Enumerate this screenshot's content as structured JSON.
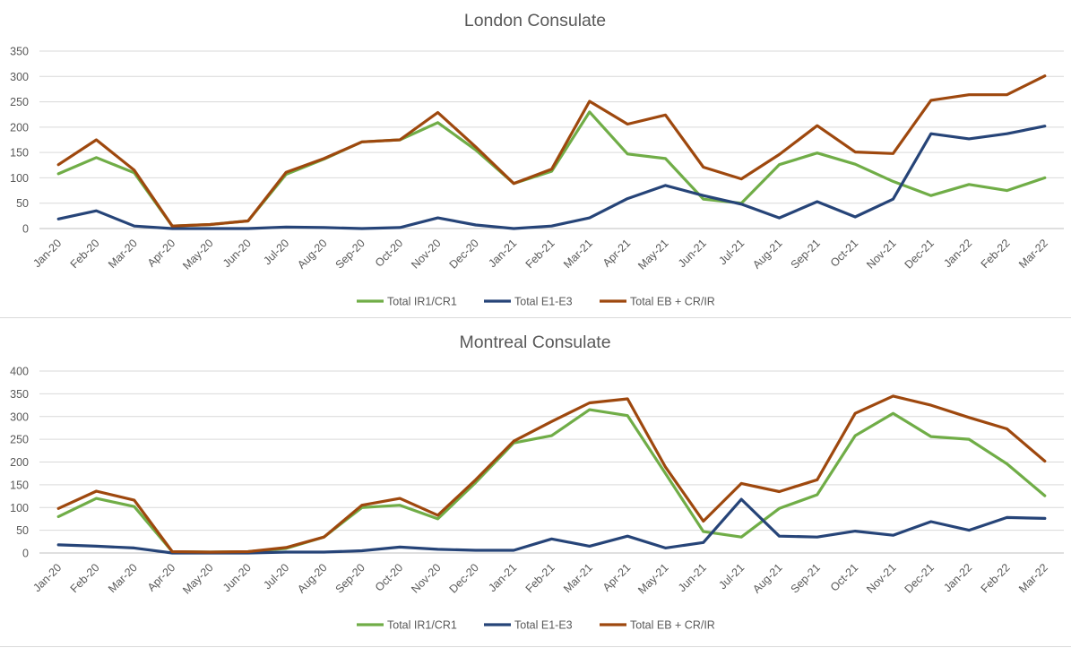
{
  "chart_data": [
    {
      "type": "line",
      "title": "London Consulate",
      "categories": [
        "Jan-20",
        "Feb-20",
        "Mar-20",
        "Apr-20",
        "May-20",
        "Jun-20",
        "Jul-20",
        "Aug-20",
        "Sep-20",
        "Oct-20",
        "Nov-20",
        "Dec-20",
        "Jan-21",
        "Feb-21",
        "Mar-21",
        "Apr-21",
        "May-21",
        "Jun-21",
        "Jul-21",
        "Aug-21",
        "Sep-21",
        "Oct-21",
        "Nov-21",
        "Dec-21",
        "Jan-22",
        "Feb-22",
        "Mar-22"
      ],
      "ylim": [
        0,
        350
      ],
      "yticks": [
        "0",
        "50",
        "100",
        "150",
        "200",
        "250",
        "300",
        "350"
      ],
      "grid": true,
      "legend_position": "bottom",
      "series": [
        {
          "name": "Total IR1/CR1",
          "color": "#70ad47",
          "values": [
            108,
            140,
            110,
            5,
            8,
            15,
            107,
            137,
            171,
            175,
            209,
            155,
            89,
            113,
            230,
            147,
            138,
            58,
            50,
            126,
            149,
            127,
            93,
            65,
            87,
            75,
            100
          ]
        },
        {
          "name": "Total E1-E3",
          "color": "#264478",
          "values": [
            19,
            35,
            5,
            0,
            0,
            0,
            3,
            2,
            0,
            2,
            21,
            7,
            0,
            5,
            21,
            59,
            85,
            65,
            48,
            21,
            53,
            23,
            58,
            187,
            177,
            187,
            202
          ]
        },
        {
          "name": "Total EB + CR/IR",
          "color": "#9e480e",
          "values": [
            126,
            175,
            115,
            5,
            8,
            15,
            111,
            138,
            171,
            175,
            229,
            161,
            89,
            117,
            251,
            206,
            224,
            121,
            98,
            146,
            203,
            151,
            148,
            253,
            264,
            264,
            301
          ]
        }
      ]
    },
    {
      "type": "line",
      "title": "Montreal Consulate",
      "categories": [
        "Jan-20",
        "Feb-20",
        "Mar-20",
        "Apr-20",
        "May-20",
        "Jun-20",
        "Jul-20",
        "Aug-20",
        "Sep-20",
        "Oct-20",
        "Nov-20",
        "Dec-20",
        "Jan-21",
        "Feb-21",
        "Mar-21",
        "Apr-21",
        "May-21",
        "Jun-21",
        "Jul-21",
        "Aug-21",
        "Sep-21",
        "Oct-21",
        "Nov-21",
        "Dec-21",
        "Jan-22",
        "Feb-22",
        "Mar-22"
      ],
      "ylim": [
        0,
        400
      ],
      "yticks": [
        "0",
        "50",
        "100",
        "150",
        "200",
        "250",
        "300",
        "350",
        "400"
      ],
      "grid": true,
      "legend_position": "bottom",
      "series": [
        {
          "name": "Total IR1/CR1",
          "color": "#70ad47",
          "values": [
            80,
            120,
            102,
            3,
            2,
            3,
            10,
            35,
            100,
            105,
            75,
            155,
            242,
            258,
            315,
            302,
            175,
            47,
            35,
            98,
            128,
            258,
            307,
            256,
            250,
            196,
            126
          ]
        },
        {
          "name": "Total E1-E3",
          "color": "#264478",
          "values": [
            18,
            15,
            11,
            0,
            0,
            0,
            2,
            2,
            5,
            13,
            8,
            6,
            6,
            31,
            15,
            37,
            11,
            23,
            118,
            37,
            35,
            48,
            39,
            69,
            50,
            78,
            76
          ]
        },
        {
          "name": "Total EB + CR/IR",
          "color": "#9e480e",
          "values": [
            98,
            136,
            116,
            3,
            2,
            3,
            12,
            35,
            105,
            120,
            83,
            161,
            246,
            289,
            330,
            339,
            189,
            70,
            153,
            135,
            161,
            307,
            345,
            325,
            298,
            273,
            202
          ]
        }
      ]
    }
  ]
}
